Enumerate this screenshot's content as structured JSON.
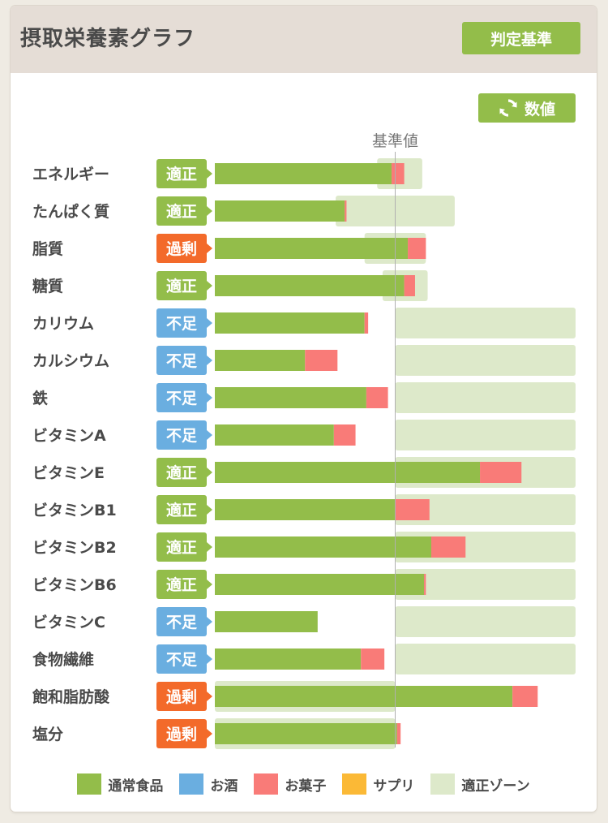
{
  "header": {
    "title": "摂取栄養素グラフ",
    "criteria_button": "判定基準",
    "value_button": "数値"
  },
  "colors": {
    "normal_food": "#93bd4a",
    "alcohol": "#6aaee0",
    "snack": "#f97b78",
    "supplement": "#fbb936",
    "appropriate_zone": "#dde9ca",
    "status_appropriate": "#93bd4a",
    "status_excess": "#f36a2a",
    "status_deficient": "#6aaee0"
  },
  "chart_data": {
    "type": "bar",
    "orientation": "horizontal",
    "stacked": true,
    "reference_label": "基準値",
    "xlim": [
      0,
      2.0
    ],
    "reference_value": 1.0,
    "categories": [
      "エネルギー",
      "たんぱく質",
      "脂質",
      "糖質",
      "カリウム",
      "カルシウム",
      "鉄",
      "ビタミンA",
      "ビタミンE",
      "ビタミンB1",
      "ビタミンB2",
      "ビタミンB6",
      "ビタミンC",
      "食物繊維",
      "飽和脂肪酸",
      "塩分"
    ],
    "status": [
      "適正",
      "適正",
      "過剰",
      "適正",
      "不足",
      "不足",
      "不足",
      "不足",
      "適正",
      "適正",
      "適正",
      "適正",
      "不足",
      "不足",
      "過剰",
      "過剰"
    ],
    "series": [
      {
        "name": "通常食品",
        "values": [
          0.98,
          0.72,
          1.07,
          1.05,
          0.83,
          0.5,
          0.84,
          0.66,
          1.47,
          1.0,
          1.2,
          1.16,
          0.57,
          0.81,
          1.65,
          1.01
        ]
      },
      {
        "name": "お酒",
        "values": [
          0,
          0,
          0,
          0,
          0,
          0,
          0,
          0,
          0,
          0,
          0,
          0,
          0,
          0,
          0,
          0
        ]
      },
      {
        "name": "お菓子",
        "values": [
          0.07,
          0.01,
          0.1,
          0.06,
          0.02,
          0.18,
          0.12,
          0.12,
          0.23,
          0.19,
          0.19,
          0.01,
          0,
          0.13,
          0.14,
          0.02
        ]
      },
      {
        "name": "サプリ",
        "values": [
          0,
          0,
          0,
          0,
          0,
          0,
          0,
          0,
          0,
          0,
          0,
          0,
          0,
          0,
          0,
          0
        ]
      }
    ],
    "appropriate_zone": [
      [
        0.9,
        1.15
      ],
      [
        0.67,
        1.33
      ],
      [
        0.83,
        1.17
      ],
      [
        0.93,
        1.18
      ],
      [
        1.0,
        2.0
      ],
      [
        1.0,
        2.0
      ],
      [
        1.0,
        2.0
      ],
      [
        1.0,
        2.0
      ],
      [
        1.0,
        2.0
      ],
      [
        1.0,
        2.0
      ],
      [
        1.0,
        2.0
      ],
      [
        1.0,
        2.0
      ],
      [
        1.0,
        2.0
      ],
      [
        1.0,
        2.0
      ],
      [
        0.0,
        1.0
      ],
      [
        0.0,
        1.0
      ]
    ]
  },
  "legend": [
    "通常食品",
    "お酒",
    "お菓子",
    "サプリ",
    "適正ゾーン"
  ]
}
